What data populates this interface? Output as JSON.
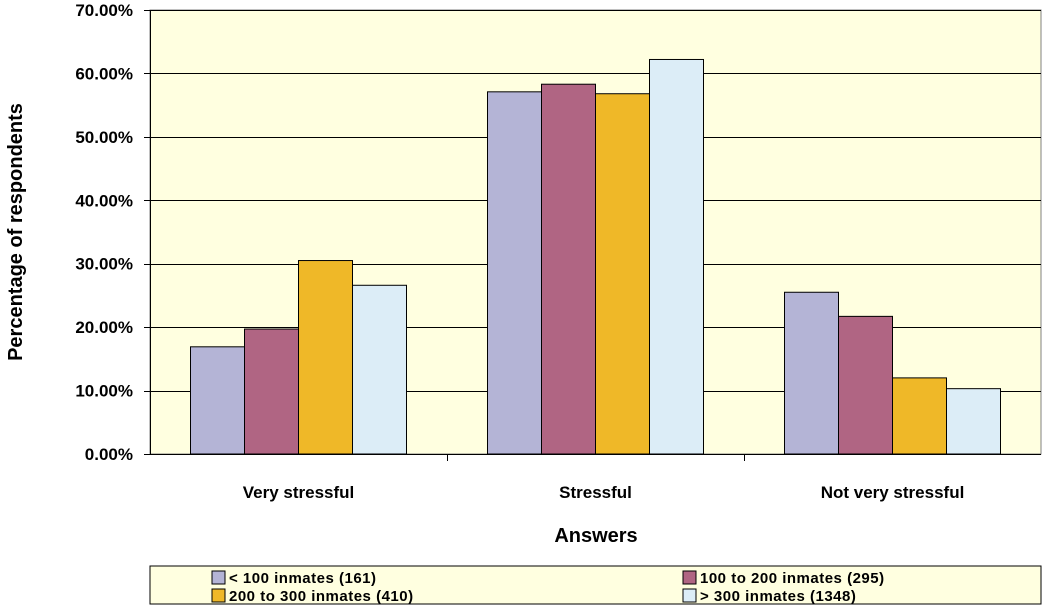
{
  "chart_data": {
    "type": "bar",
    "title": "",
    "xlabel": "Answers",
    "ylabel": "Percentage of respondents",
    "ylim": [
      0,
      0.7
    ],
    "yticks": [
      0,
      0.1,
      0.2,
      0.3,
      0.4,
      0.5,
      0.6,
      0.7
    ],
    "ytick_labels": [
      "0.00%",
      "10.00%",
      "20.00%",
      "30.00%",
      "40.00%",
      "50.00%",
      "60.00%",
      "70.00%"
    ],
    "grid": true,
    "legend_position": "bottom",
    "categories": [
      "Very stressful",
      "Stressful",
      "Not very stressful"
    ],
    "series": [
      {
        "name": "< 100 inmates (161)",
        "color": "#b4b4d6",
        "values": [
          0.169,
          0.571,
          0.255
        ]
      },
      {
        "name": "100 to 200 inmates (295)",
        "color": "#b06583",
        "values": [
          0.197,
          0.583,
          0.217
        ]
      },
      {
        "name": "200 to 300 inmates (410)",
        "color": "#efb828",
        "values": [
          0.305,
          0.568,
          0.12
        ]
      },
      {
        "name": "> 300 inmates (1348)",
        "color": "#dcedf7",
        "values": [
          0.266,
          0.622,
          0.103
        ]
      }
    ],
    "plot_background": "#ffffe0"
  }
}
